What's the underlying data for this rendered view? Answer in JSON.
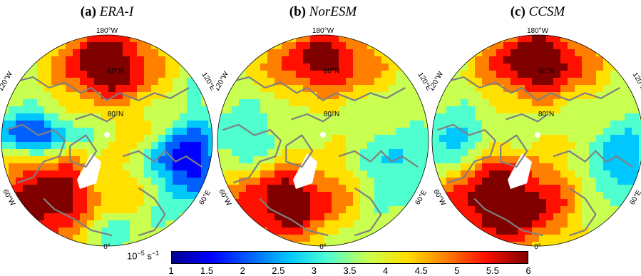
{
  "panels": [
    {
      "letter": "(a)",
      "model": "ERA-I",
      "variant": "era"
    },
    {
      "letter": "(b)",
      "model": "NorESM",
      "variant": "nor"
    },
    {
      "letter": "(c)",
      "model": "CCSM",
      "variant": "ccsm"
    }
  ],
  "map_labels": {
    "top": "180°W",
    "upper_left": "120°W",
    "upper_right": "120°E",
    "lower_left": "60°W",
    "lower_right": "60°E",
    "bottom": "0°",
    "lat_60": "60°N",
    "lat_80": "80°N"
  },
  "colorbar": {
    "unit": "10",
    "unit_exp": "−5",
    "unit_suffix": " s",
    "unit_suffix_exp": "−1",
    "min": 1,
    "max": 6,
    "ticks": [
      "1",
      "1.5",
      "2",
      "2.5",
      "3",
      "3.5",
      "4",
      "4.5",
      "5",
      "5.5",
      "6"
    ],
    "colors": [
      "#00008f",
      "#0000ff",
      "#0060ff",
      "#00c8ff",
      "#50ffd0",
      "#c8ff50",
      "#ffe000",
      "#ff8000",
      "#ff1000",
      "#800000"
    ]
  }
}
